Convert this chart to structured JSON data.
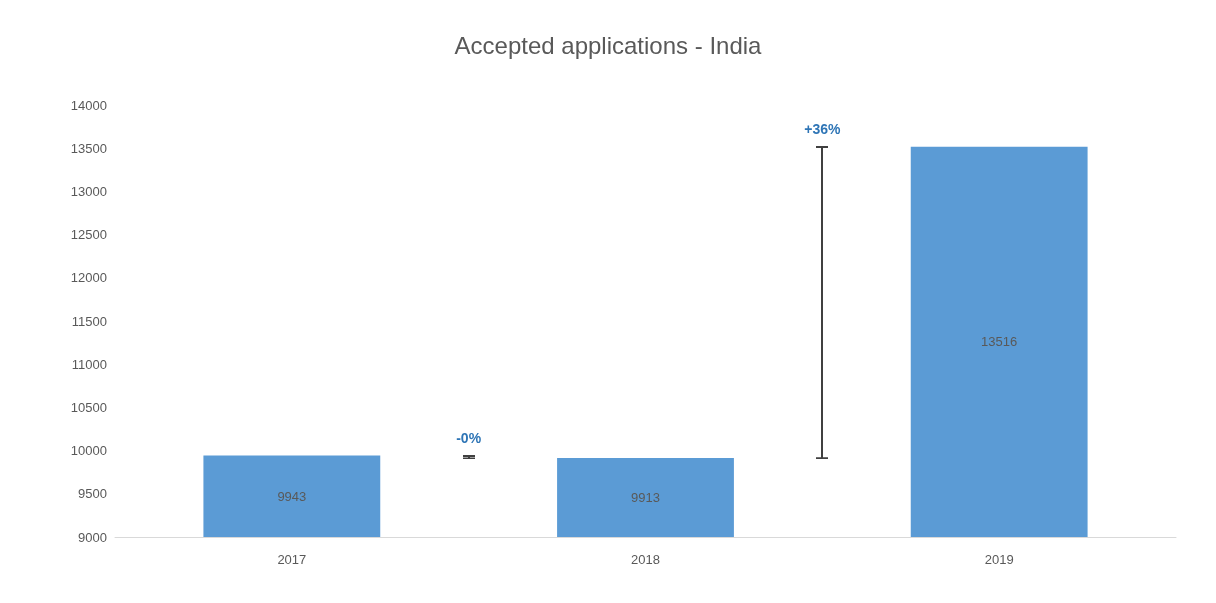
{
  "chart_data": {
    "type": "bar",
    "title": "Accepted applications - India",
    "categories": [
      "2017",
      "2018",
      "2019"
    ],
    "values": [
      9943,
      9913,
      13516
    ],
    "color": "#5b9bd5",
    "ylim": [
      9000,
      14000
    ],
    "yticks": [
      9000,
      9500,
      10000,
      10500,
      11000,
      11500,
      12000,
      12500,
      13000,
      13500,
      14000
    ],
    "grid": false,
    "data_labels": true,
    "annotations": [
      "-0%",
      "+36%"
    ]
  }
}
